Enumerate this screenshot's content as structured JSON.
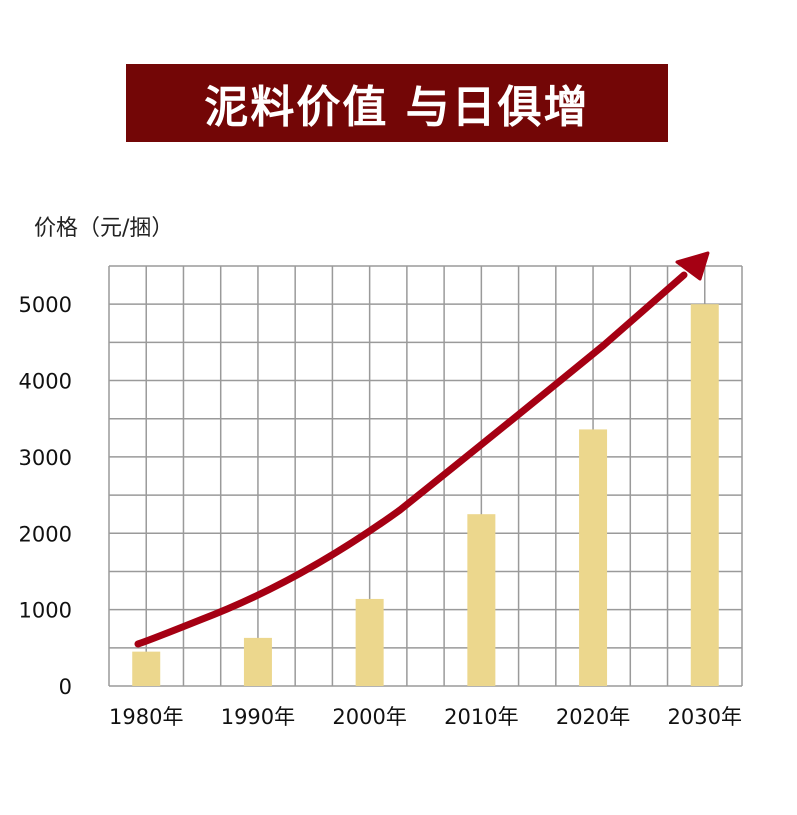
{
  "chart_data": {
    "type": "bar",
    "title": "泥料价值 与日俱增",
    "ylabel": "价格（元/捆）",
    "xlabel": "",
    "categories": [
      "1980年",
      "1990年",
      "2000年",
      "2010年",
      "2020年",
      "2030年"
    ],
    "values": [
      450,
      630,
      1140,
      2250,
      3360,
      5000
    ],
    "ylim": [
      0,
      5500
    ],
    "yticks": [
      0,
      1000,
      2000,
      3000,
      4000,
      5000
    ],
    "grid": true,
    "trend_arrow": true,
    "colors": {
      "bar": "#ecd78d",
      "arrow": "#a50013",
      "banner": "#730606",
      "grid": "#9a9a9a"
    }
  }
}
